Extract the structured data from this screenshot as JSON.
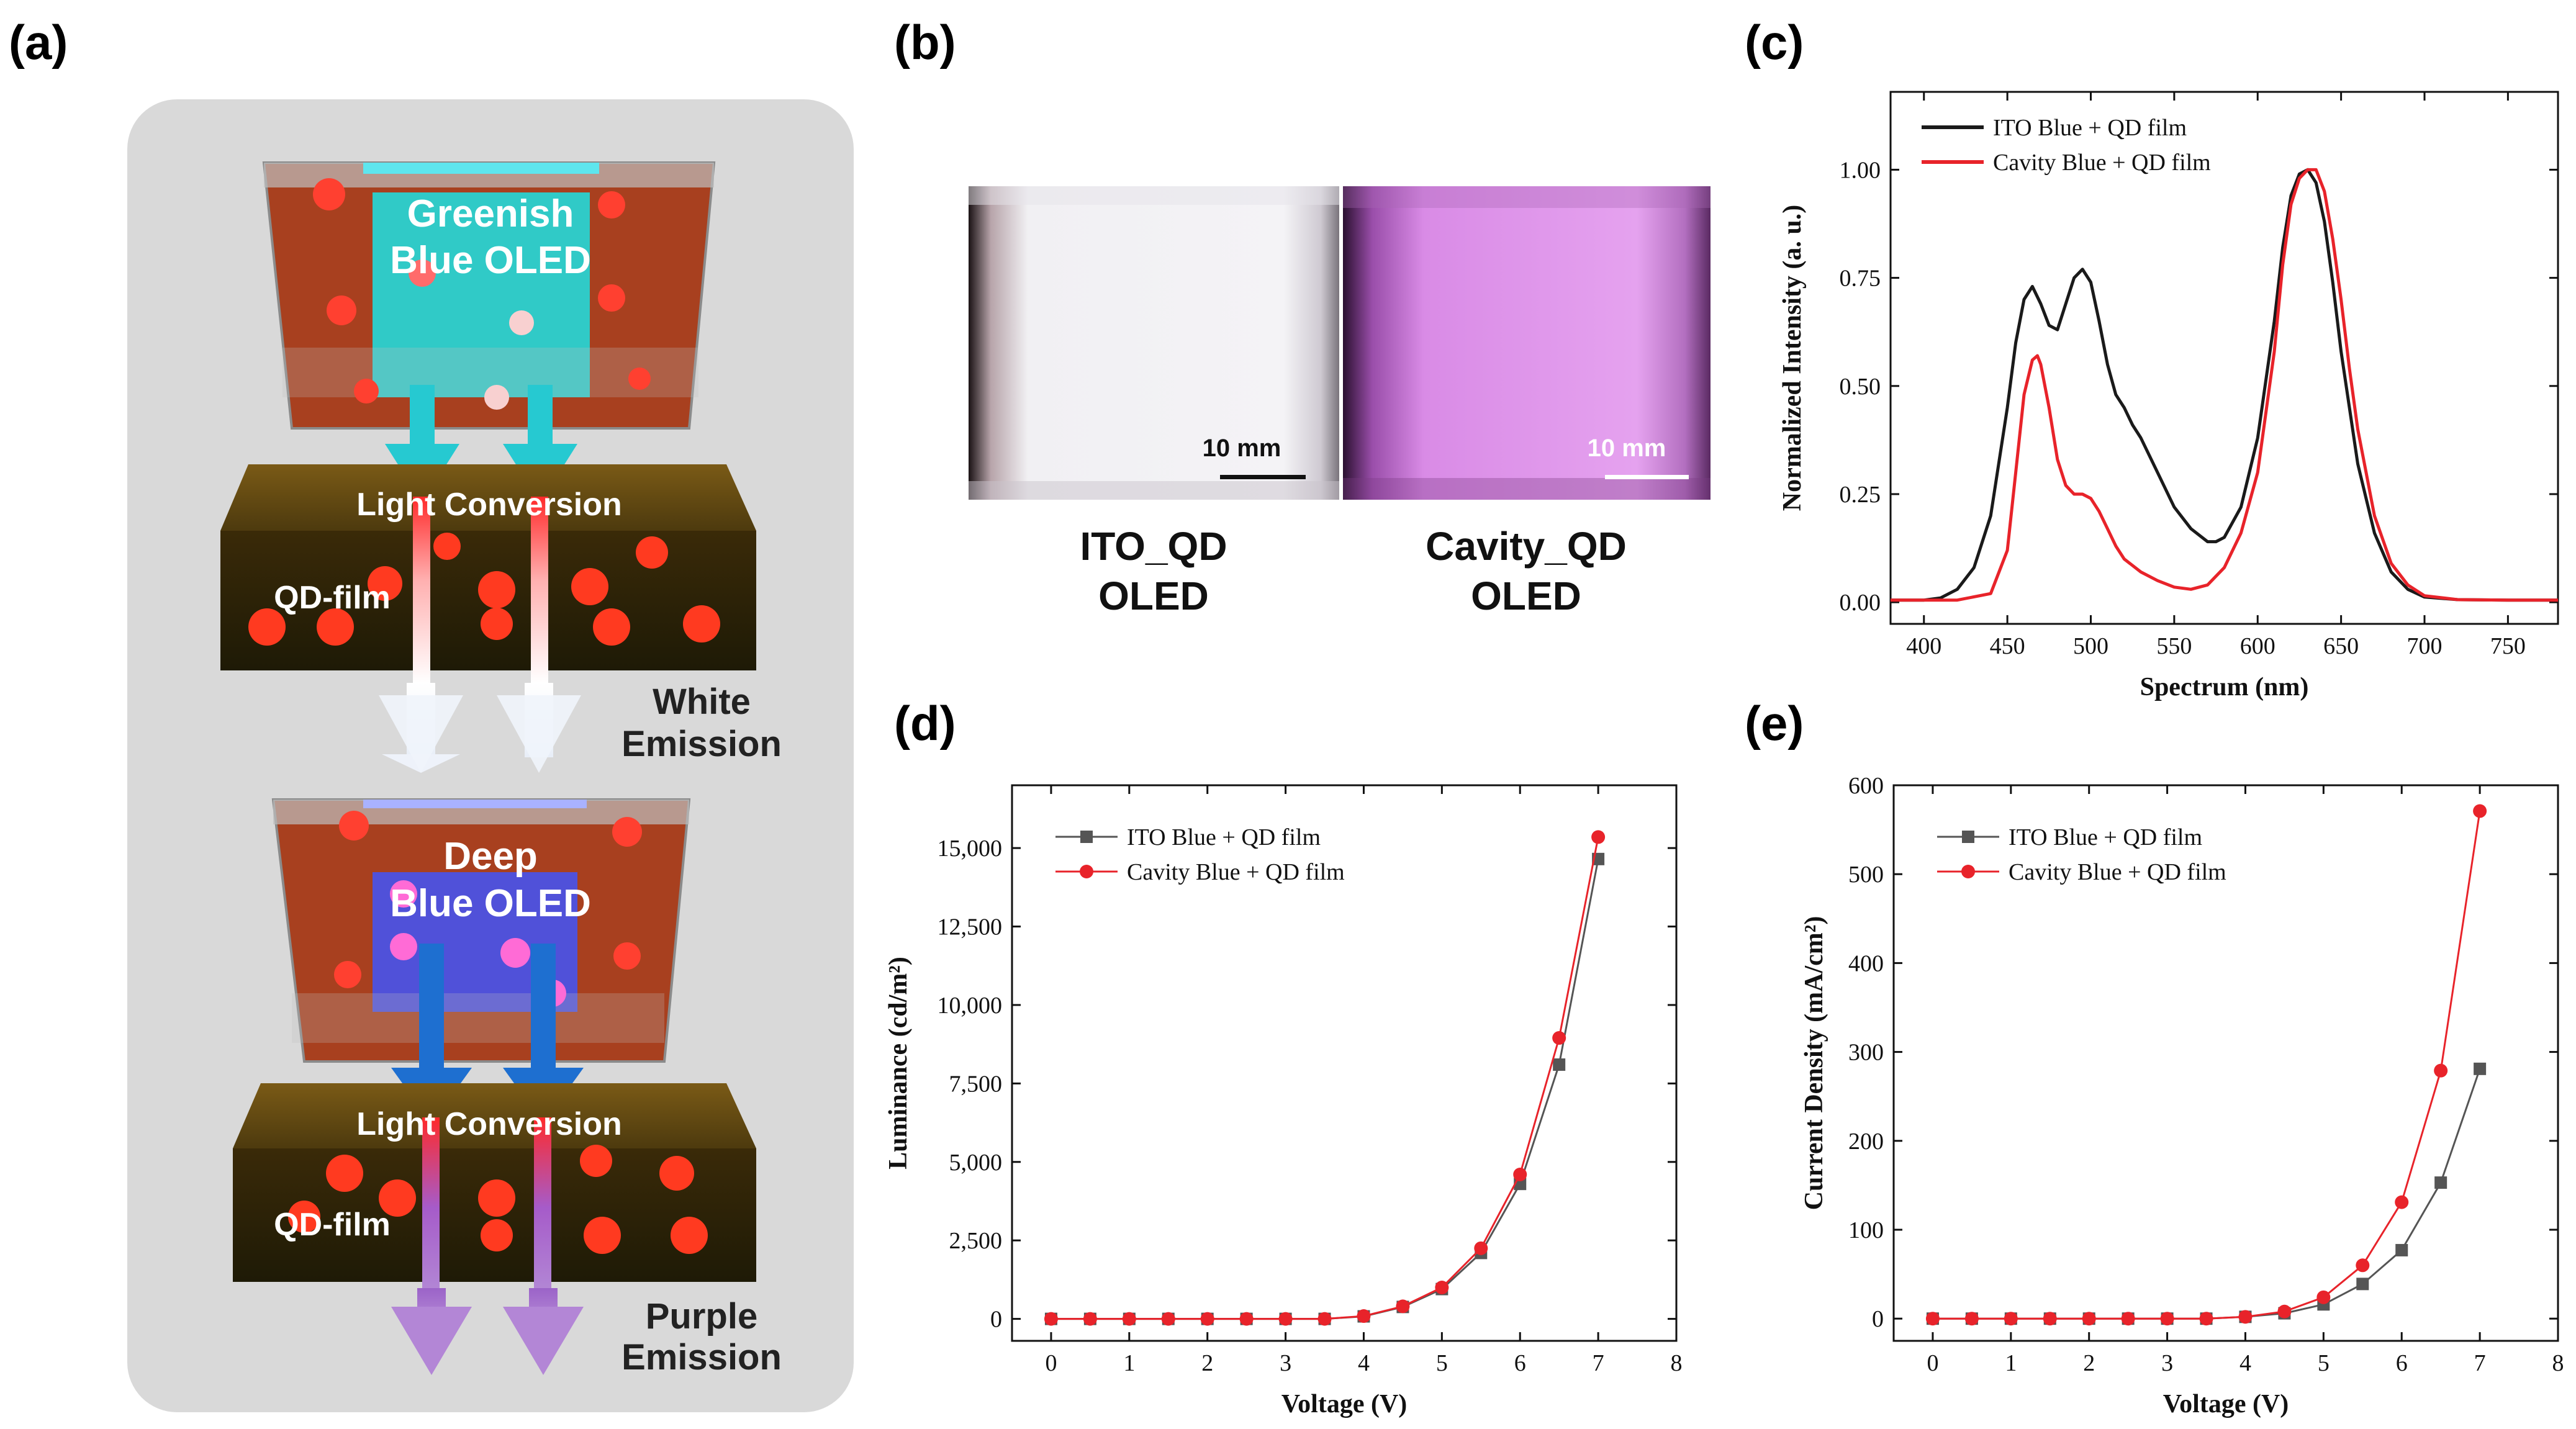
{
  "panel_labels": [
    "(a)",
    "(b)",
    "(c)",
    "(d)",
    "(e)"
  ],
  "panel_a": {
    "top": {
      "device_line1": "Greenish",
      "device_line2": "Blue OLED",
      "conversion": "Light Conversion",
      "film": "QD-film",
      "emission_line1": "White",
      "emission_line2": "Emission"
    },
    "bottom": {
      "device_line1": "Deep",
      "device_line2": "Blue OLED",
      "conversion": "Light Conversion",
      "film": "QD-film",
      "emission_line1": "Purple",
      "emission_line2": "Emission"
    }
  },
  "panel_b": {
    "left": {
      "scale_text": "10 mm",
      "caption_line1": "ITO_QD",
      "caption_line2": "OLED"
    },
    "right": {
      "scale_text": "10 mm",
      "caption_line1": "Cavity_QD",
      "caption_line2": "OLED"
    }
  },
  "colors": {
    "black_series": "#1a1a1a",
    "red_series": "#e8232a",
    "gray_marker": "#555555",
    "panel_bg": "#d9d9d9"
  },
  "chart_data": [
    {
      "id": "c",
      "type": "line",
      "xlabel": "Spectrum (nm)",
      "ylabel": "Normalized Intensity (a. u.)",
      "xlim": [
        380,
        780
      ],
      "ylim": [
        -0.05,
        1.18
      ],
      "xticks": [
        400,
        450,
        500,
        550,
        600,
        650,
        700,
        750
      ],
      "xtick_labels": [
        "400",
        "450",
        "500",
        "550",
        "600",
        "650",
        "700",
        "750"
      ],
      "yticks": [
        0,
        0.25,
        0.5,
        0.75,
        1.0
      ],
      "ytick_labels": [
        "0.00",
        "0.25",
        "0.50",
        "0.75",
        "1.00"
      ],
      "legend_position": "top-left",
      "series": [
        {
          "name": "ITO Blue + QD film",
          "color": "#1a1a1a",
          "x": [
            380,
            400,
            410,
            420,
            430,
            440,
            450,
            455,
            460,
            465,
            470,
            475,
            480,
            485,
            490,
            495,
            500,
            505,
            510,
            515,
            520,
            525,
            530,
            540,
            550,
            560,
            570,
            575,
            580,
            590,
            600,
            610,
            615,
            620,
            625,
            630,
            635,
            640,
            645,
            650,
            660,
            670,
            680,
            690,
            700,
            720,
            750,
            780
          ],
          "y": [
            0.005,
            0.005,
            0.01,
            0.03,
            0.08,
            0.2,
            0.45,
            0.6,
            0.7,
            0.73,
            0.69,
            0.64,
            0.63,
            0.69,
            0.75,
            0.77,
            0.74,
            0.65,
            0.55,
            0.48,
            0.45,
            0.41,
            0.38,
            0.3,
            0.22,
            0.17,
            0.14,
            0.14,
            0.15,
            0.22,
            0.38,
            0.65,
            0.82,
            0.94,
            0.99,
            1.0,
            0.97,
            0.88,
            0.74,
            0.58,
            0.32,
            0.16,
            0.07,
            0.03,
            0.012,
            0.006,
            0.005,
            0.005
          ]
        },
        {
          "name": "Cavity Blue + QD film",
          "color": "#e8232a",
          "x": [
            380,
            420,
            440,
            450,
            455,
            460,
            465,
            468,
            470,
            475,
            480,
            485,
            490,
            495,
            500,
            505,
            510,
            515,
            520,
            530,
            540,
            550,
            560,
            570,
            580,
            590,
            600,
            610,
            615,
            620,
            625,
            630,
            635,
            640,
            645,
            650,
            655,
            660,
            670,
            680,
            690,
            700,
            720,
            750,
            780
          ],
          "y": [
            0.005,
            0.005,
            0.02,
            0.12,
            0.3,
            0.48,
            0.56,
            0.57,
            0.55,
            0.45,
            0.33,
            0.27,
            0.25,
            0.25,
            0.24,
            0.21,
            0.17,
            0.13,
            0.1,
            0.07,
            0.05,
            0.035,
            0.03,
            0.04,
            0.08,
            0.16,
            0.3,
            0.58,
            0.78,
            0.92,
            0.98,
            1.0,
            1.0,
            0.95,
            0.84,
            0.7,
            0.54,
            0.4,
            0.2,
            0.09,
            0.04,
            0.015,
            0.006,
            0.005,
            0.005
          ]
        }
      ]
    },
    {
      "id": "d",
      "type": "line",
      "xlabel": "Voltage (V)",
      "ylabel": "Luminance (cd/m²)",
      "xlim": [
        -0.5,
        8
      ],
      "ylim": [
        -700,
        17000
      ],
      "xticks": [
        0,
        1,
        2,
        3,
        4,
        5,
        6,
        7,
        8
      ],
      "xtick_labels": [
        "0",
        "1",
        "2",
        "3",
        "4",
        "5",
        "6",
        "7",
        "8"
      ],
      "yticks": [
        0,
        2500,
        5000,
        7500,
        10000,
        12500,
        15000
      ],
      "ytick_labels": [
        "0",
        "2,500",
        "5,000",
        "7,500",
        "10,000",
        "12,500",
        "15,000"
      ],
      "legend_position": "top-left",
      "series": [
        {
          "name": "ITO Blue + QD film",
          "color": "#555555",
          "marker": "square",
          "x": [
            0,
            0.5,
            1,
            1.5,
            2,
            2.5,
            3,
            3.5,
            4,
            4.5,
            5,
            5.5,
            6,
            6.5,
            7
          ],
          "y": [
            0,
            0,
            0,
            0,
            0,
            0,
            0,
            0,
            80,
            380,
            950,
            2100,
            4300,
            8100,
            14650
          ]
        },
        {
          "name": "Cavity Blue + QD film",
          "color": "#e8232a",
          "marker": "circle",
          "x": [
            0,
            0.5,
            1,
            1.5,
            2,
            2.5,
            3,
            3.5,
            4,
            4.5,
            5,
            5.5,
            6,
            6.5,
            7
          ],
          "y": [
            0,
            0,
            0,
            0,
            0,
            0,
            0,
            0,
            90,
            400,
            1000,
            2250,
            4600,
            8950,
            15350
          ]
        }
      ]
    },
    {
      "id": "e",
      "type": "line",
      "xlabel": "Voltage (V)",
      "ylabel": "Current Density (mA/cm²)",
      "xlim": [
        -0.5,
        8
      ],
      "ylim": [
        -25,
        600
      ],
      "xticks": [
        0,
        1,
        2,
        3,
        4,
        5,
        6,
        7,
        8
      ],
      "xtick_labels": [
        "0",
        "1",
        "2",
        "3",
        "4",
        "5",
        "6",
        "7",
        "8"
      ],
      "yticks": [
        0,
        100,
        200,
        300,
        400,
        500,
        600
      ],
      "ytick_labels": [
        "0",
        "100",
        "200",
        "300",
        "400",
        "500",
        "600"
      ],
      "legend_position": "top-left",
      "series": [
        {
          "name": "ITO Blue + QD film",
          "color": "#555555",
          "marker": "square",
          "x": [
            0,
            0.5,
            1,
            1.5,
            2,
            2.5,
            3,
            3.5,
            4,
            4.5,
            5,
            5.5,
            6,
            6.5,
            7
          ],
          "y": [
            0,
            0,
            0,
            0,
            0,
            0,
            0,
            0,
            2,
            6,
            16,
            39,
            77,
            153,
            281
          ]
        },
        {
          "name": "Cavity Blue + QD film",
          "color": "#e8232a",
          "marker": "circle",
          "x": [
            0,
            0.5,
            1,
            1.5,
            2,
            2.5,
            3,
            3.5,
            4,
            4.5,
            5,
            5.5,
            6,
            6.5,
            7
          ],
          "y": [
            0,
            0,
            0,
            0,
            0,
            0,
            0,
            0,
            2,
            8,
            24,
            60,
            131,
            279,
            571
          ]
        }
      ]
    }
  ]
}
